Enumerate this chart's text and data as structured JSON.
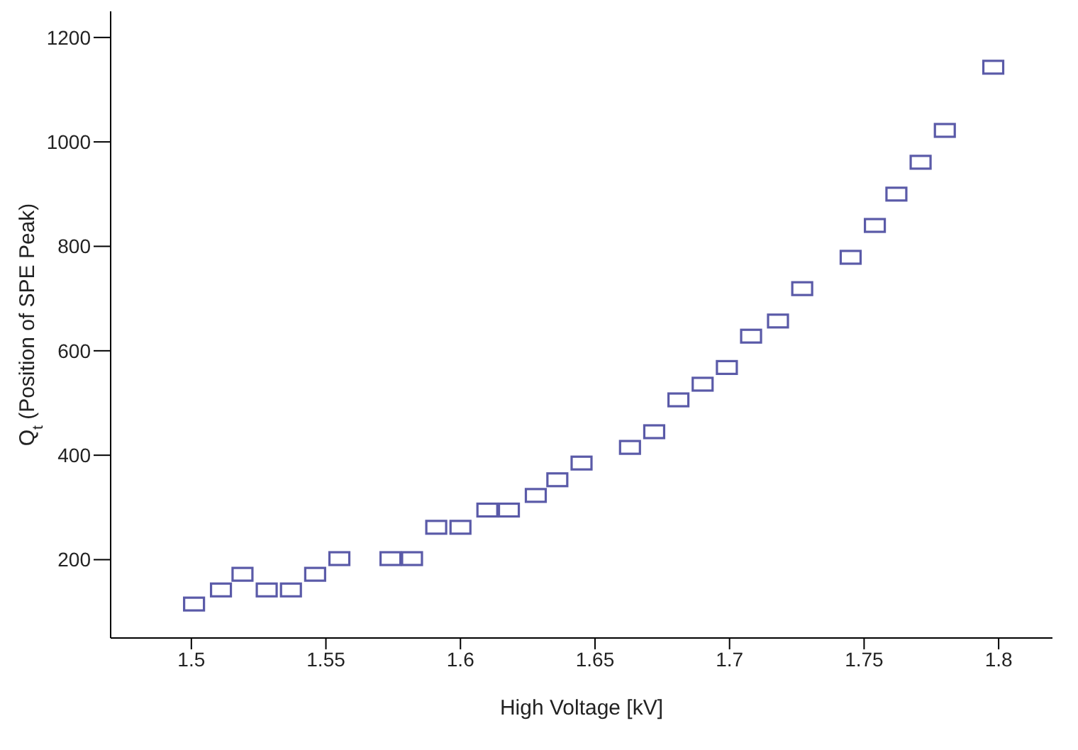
{
  "chart_data": {
    "type": "scatter",
    "xlabel": "High Voltage [kV]",
    "ylabel": "Q$_{t}$ (Position of SPE Peak)",
    "x": [
      1.501,
      1.511,
      1.519,
      1.528,
      1.537,
      1.546,
      1.555,
      1.574,
      1.582,
      1.591,
      1.6,
      1.61,
      1.618,
      1.628,
      1.636,
      1.645,
      1.663,
      1.672,
      1.681,
      1.69,
      1.699,
      1.708,
      1.718,
      1.727,
      1.745,
      1.754,
      1.762,
      1.771,
      1.78,
      1.798
    ],
    "series": [
      {
        "color": "#5a5aa8",
        "values": [
          115,
          142,
          172,
          142,
          142,
          172,
          202,
          202,
          202,
          262,
          262,
          295,
          295,
          323,
          353,
          385,
          415,
          445,
          506,
          536,
          568,
          628,
          657,
          719,
          779,
          840,
          900,
          961,
          1022,
          1143
        ]
      }
    ],
    "xlim": [
      1.47,
      1.82
    ],
    "xticks": [
      1.5,
      1.55,
      1.6,
      1.65,
      1.7,
      1.75,
      1.8
    ],
    "ylim": [
      50,
      1250
    ],
    "yticks": [
      200,
      400,
      600,
      800,
      1000,
      1200
    ],
    "marker": "square",
    "grid": false,
    "legend": false
  }
}
